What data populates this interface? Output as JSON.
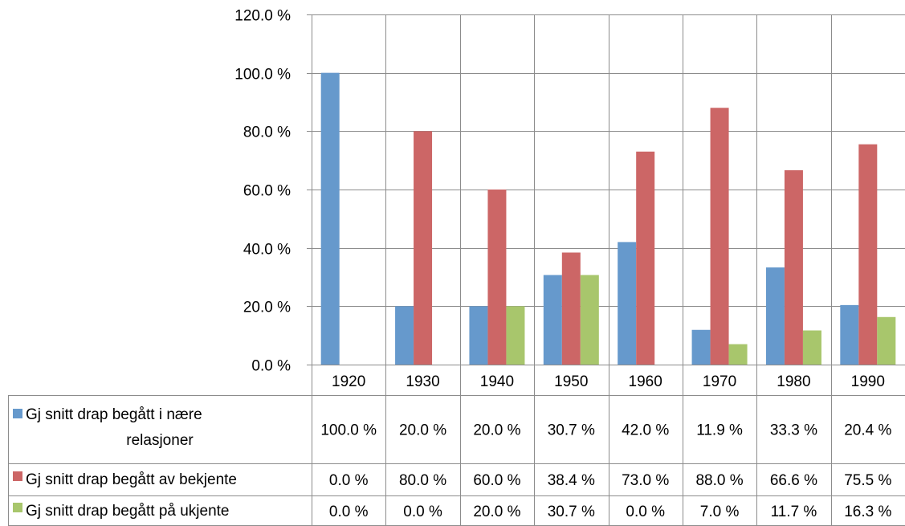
{
  "chart_data": {
    "type": "bar",
    "categories": [
      "1920",
      "1930",
      "1940",
      "1950",
      "1960",
      "1970",
      "1980",
      "1990"
    ],
    "ylim": [
      0,
      120
    ],
    "y_ticks": [
      "0.0 %",
      "20.0 %",
      "40.0 %",
      "60.0 %",
      "80.0 %",
      "100.0 %",
      "120.0 %"
    ],
    "grid": true,
    "legend": "data-table",
    "series": [
      {
        "name_lines": [
          "Gj snitt drap begått i nære",
          "relasjoner"
        ],
        "color": "#6699cc",
        "values": [
          100.0,
          20.0,
          20.0,
          30.7,
          42.0,
          11.9,
          33.3,
          20.4
        ],
        "labels": [
          "100.0 %",
          "20.0 %",
          "20.0 %",
          "30.7 %",
          "42.0 %",
          "11.9 %",
          "33.3 %",
          "20.4 %"
        ]
      },
      {
        "name": "Gj snitt drap begått av bekjente",
        "color": "#cc6666",
        "values": [
          0.0,
          80.0,
          60.0,
          38.4,
          73.0,
          88.0,
          66.6,
          75.5
        ],
        "labels": [
          "0.0 %",
          "80.0 %",
          "60.0 %",
          "38.4 %",
          "73.0 %",
          "88.0 %",
          "66.6 %",
          "75.5 %"
        ]
      },
      {
        "name": "Gj snitt drap begått på ukjente",
        "color": "#a8c66c",
        "values": [
          0.0,
          0.0,
          20.0,
          30.7,
          0.0,
          7.0,
          11.7,
          16.3
        ],
        "labels": [
          "0.0 %",
          "0.0 %",
          "20.0 %",
          "30.7 %",
          "0.0 %",
          "7.0 %",
          "11.7 %",
          "16.3 %"
        ]
      }
    ]
  }
}
